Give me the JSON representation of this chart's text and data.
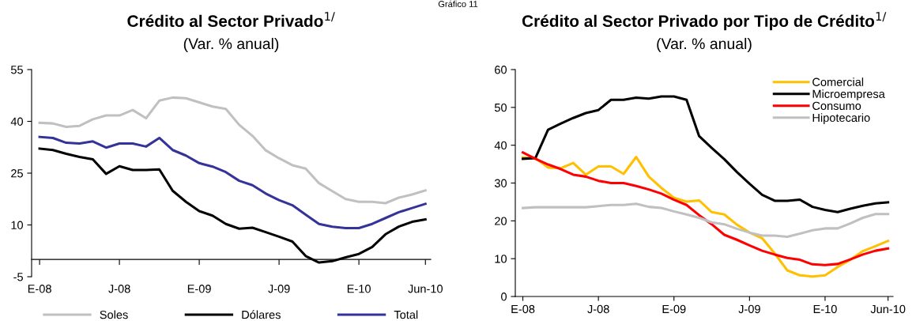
{
  "chart_data": [
    {
      "type": "line",
      "title": "Crédito al Sector Privado$^{1/}$",
      "subtitle": "(Var. % anual)",
      "annotations": [
        "Gráfico 11"
      ],
      "categories": [
        "E-08",
        null,
        null,
        null,
        null,
        null,
        "J-08",
        null,
        null,
        null,
        null,
        null,
        "E-09",
        null,
        null,
        null,
        null,
        null,
        "J-09",
        null,
        null,
        null,
        null,
        null,
        "E-10",
        null,
        null,
        null,
        null,
        "Jun-10"
      ],
      "ylim": [
        -5,
        55
      ],
      "yticks": [
        -5,
        10,
        25,
        40,
        55
      ],
      "grid": false,
      "legend": "bottom",
      "line_style": "solid",
      "series": [
        {
          "name": "Soles",
          "color": "#c0c0c0",
          "values": [
            39.6,
            39.4,
            38.4,
            38.7,
            40.6,
            41.7,
            41.7,
            43.3,
            40.9,
            46.0,
            46.9,
            46.7,
            45.5,
            44.3,
            43.6,
            39.0,
            35.8,
            31.6,
            29.3,
            27.3,
            26.3,
            22.1,
            19.8,
            17.5,
            16.7,
            16.7,
            16.3,
            17.9,
            18.8,
            20.0
          ]
        },
        {
          "name": "Dólares",
          "color": "#000000",
          "values": [
            32.1,
            31.7,
            30.6,
            29.7,
            29.0,
            24.8,
            27.0,
            25.9,
            25.9,
            26.1,
            19.9,
            16.7,
            14.0,
            12.7,
            10.3,
            8.9,
            9.2,
            7.9,
            6.6,
            5.2,
            1.0,
            -0.9,
            -0.5,
            0.6,
            1.6,
            3.6,
            7.3,
            9.5,
            10.9,
            11.6
          ]
        },
        {
          "name": "Total",
          "color": "#333399",
          "values": [
            35.5,
            35.2,
            33.8,
            33.6,
            34.2,
            32.4,
            33.6,
            33.6,
            32.7,
            35.2,
            31.7,
            30.1,
            27.9,
            26.9,
            25.3,
            22.8,
            21.5,
            19.1,
            17.2,
            15.7,
            13.0,
            10.3,
            9.5,
            9.1,
            9.1,
            10.3,
            12.0,
            13.7,
            14.9,
            16.1
          ]
        }
      ]
    },
    {
      "type": "line",
      "title": "Crédito al Sector Privado por Tipo de Crédito$^{1/}$",
      "subtitle": "(Var. % anual)",
      "categories": [
        "E-08",
        null,
        null,
        null,
        null,
        null,
        "J-08",
        null,
        null,
        null,
        null,
        null,
        "E-09",
        null,
        null,
        null,
        null,
        null,
        "J-09",
        null,
        null,
        null,
        null,
        null,
        "E-10",
        null,
        null,
        null,
        null,
        "Jun-10"
      ],
      "ylim": [
        0,
        60
      ],
      "yticks": [
        0,
        10,
        20,
        30,
        40,
        50,
        60
      ],
      "grid": false,
      "legend": "top right",
      "line_style": "solid",
      "series": [
        {
          "name": "Comercial",
          "color": "#ffc000",
          "values": [
            36.8,
            36.6,
            34.1,
            33.9,
            35.3,
            32.2,
            34.4,
            34.4,
            32.4,
            36.9,
            31.7,
            28.7,
            26.1,
            25.1,
            25.4,
            22.3,
            21.7,
            19.0,
            16.9,
            15.4,
            11.4,
            6.9,
            5.6,
            5.3,
            5.6,
            7.8,
            9.7,
            12.0,
            13.3,
            14.7
          ]
        },
        {
          "name": "Microempresa",
          "color": "#000000",
          "values": [
            36.4,
            36.6,
            44.1,
            45.7,
            47.2,
            48.5,
            49.3,
            52.0,
            52.0,
            52.6,
            52.3,
            52.9,
            52.9,
            52.0,
            42.4,
            39.3,
            36.3,
            32.9,
            29.8,
            26.9,
            25.3,
            25.3,
            25.6,
            23.7,
            22.9,
            22.3,
            23.2,
            24.0,
            24.6,
            24.9
          ]
        },
        {
          "name": "Consumo",
          "color": "#ff0000",
          "values": [
            38.1,
            36.4,
            34.9,
            33.7,
            32.2,
            31.7,
            30.6,
            30.0,
            30.0,
            29.2,
            28.3,
            27.2,
            25.6,
            24.2,
            21.5,
            19.1,
            16.3,
            15.0,
            13.5,
            12.1,
            11.1,
            10.2,
            9.7,
            8.5,
            8.3,
            8.6,
            9.8,
            11.1,
            12.1,
            12.7
          ]
        },
        {
          "name": "Hipotecario",
          "color": "#c0c0c0",
          "values": [
            23.4,
            23.6,
            23.6,
            23.6,
            23.6,
            23.6,
            23.9,
            24.2,
            24.2,
            24.5,
            23.7,
            23.4,
            22.5,
            21.7,
            20.8,
            19.6,
            19.1,
            17.9,
            16.9,
            16.1,
            16.1,
            15.8,
            16.6,
            17.5,
            18.0,
            18.0,
            19.3,
            20.8,
            21.8,
            21.8
          ]
        }
      ]
    }
  ]
}
